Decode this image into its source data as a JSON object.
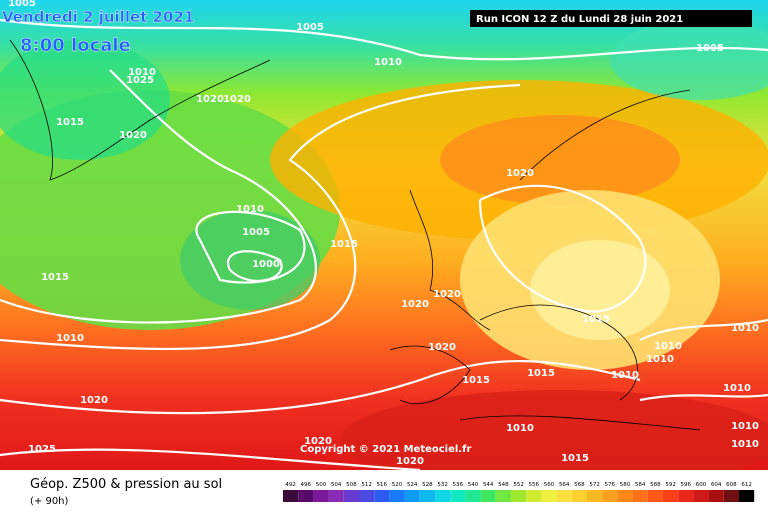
{
  "header": {
    "date": "Vendredi 2 juillet 2021",
    "time": "8:00 locale",
    "run": "Run ICON 12 Z du Lundi 28 juin 2021"
  },
  "isobar_labels": [
    "1005",
    "1005",
    "1010",
    "1005",
    "1010",
    "1025",
    "1020",
    "1020",
    "1015",
    "1020",
    "1020",
    "1010",
    "1005",
    "1000",
    "1015",
    "1015",
    "1020",
    "1020",
    "1015",
    "1010",
    "1010",
    "1020",
    "1010",
    "1010",
    "1015",
    "1015",
    "1010",
    "1010",
    "1020",
    "1010",
    "1010",
    "1020",
    "1025",
    "1010",
    "1020",
    "1015"
  ],
  "copyright": "Copyright © 2021 Meteociel.fr",
  "footer": {
    "title": "Géop. Z500 & pression au sol",
    "lead": "(+ 90h)"
  },
  "scale": [
    492,
    496,
    500,
    504,
    508,
    512,
    516,
    520,
    524,
    528,
    532,
    536,
    540,
    544,
    548,
    552,
    556,
    560,
    564,
    568,
    572,
    576,
    580,
    584,
    588,
    592,
    596,
    600,
    604,
    608,
    612
  ]
}
